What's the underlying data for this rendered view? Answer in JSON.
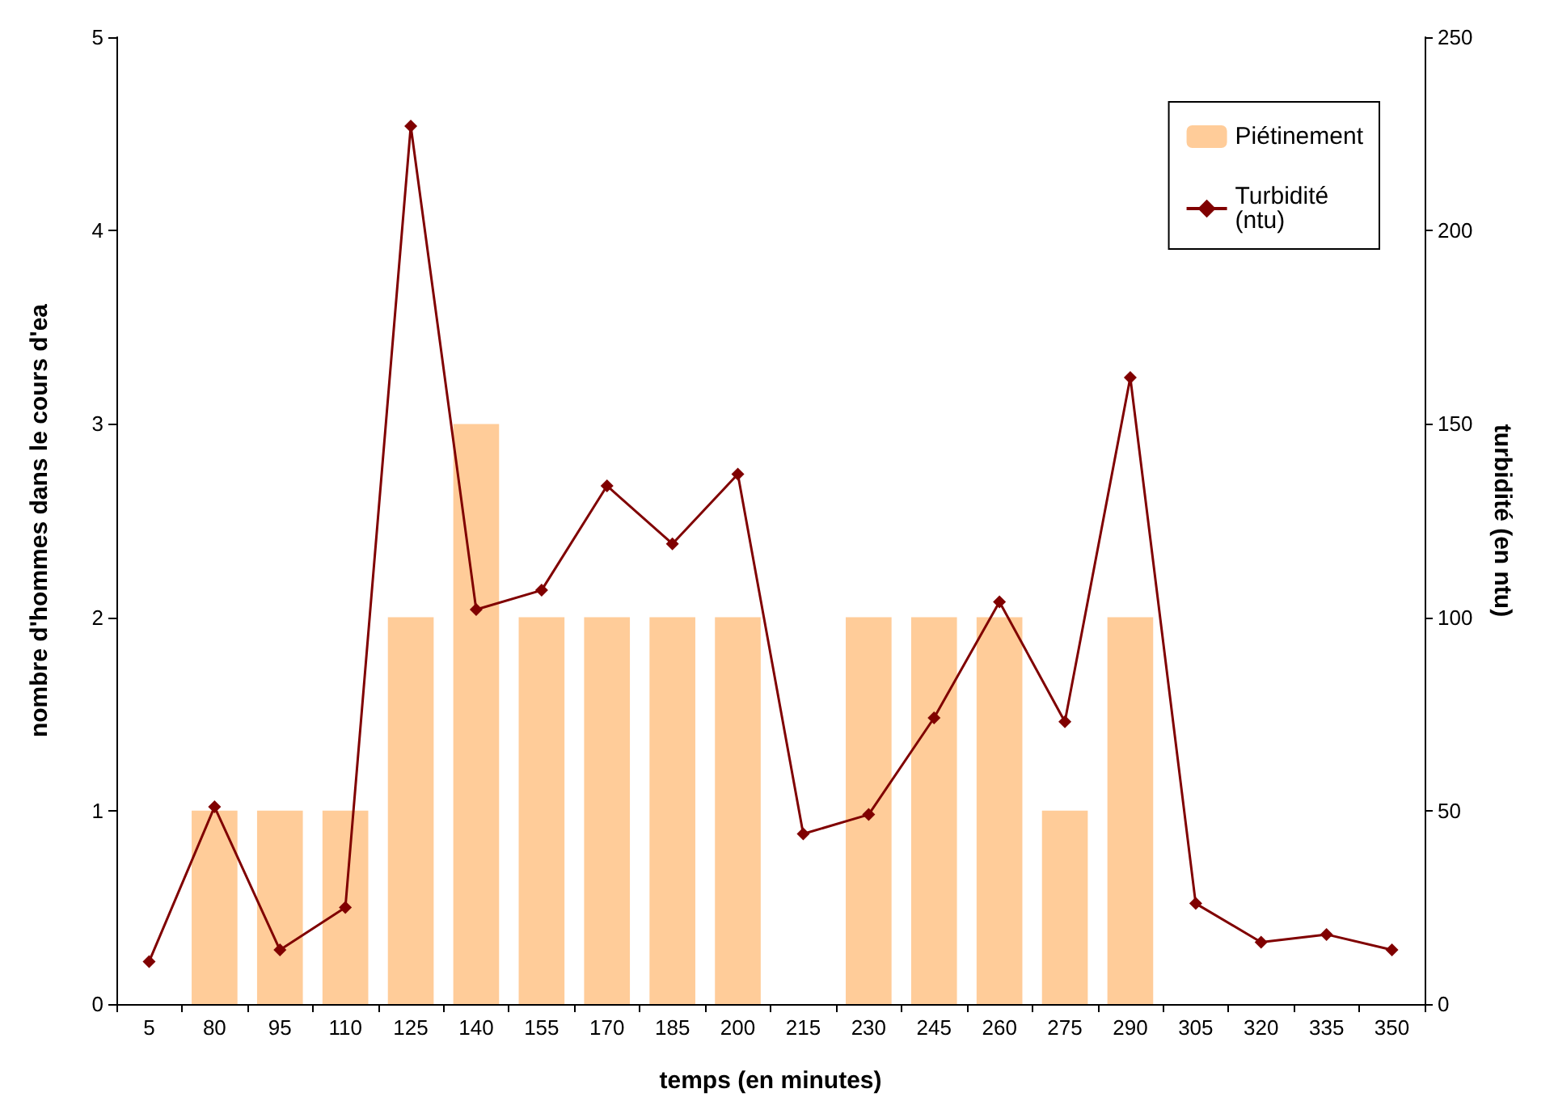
{
  "chart_data": {
    "type": "bar",
    "xlabel": "temps (en minutes)",
    "ylabel": "nombre d'hommes dans le cours d'ea",
    "y2label": "turbidité (en ntu)",
    "categories": [
      "5",
      "80",
      "95",
      "110",
      "125",
      "140",
      "155",
      "170",
      "185",
      "200",
      "215",
      "230",
      "245",
      "260",
      "275",
      "290",
      "305",
      "320",
      "335",
      "350"
    ],
    "series": [
      {
        "name": "Piétinement",
        "color": "#ffcc99",
        "values": [
          0,
          1,
          1,
          1,
          2,
          3,
          2,
          2,
          2,
          2,
          0,
          2,
          2,
          2,
          1,
          2,
          0,
          0,
          0,
          0
        ]
      },
      {
        "name": "Turbidité\n(ntu)",
        "type": "line",
        "axis": "y2",
        "color": "#800000",
        "marker": "diamond",
        "values": [
          11,
          51,
          14,
          25,
          227,
          102,
          107,
          134,
          119,
          137,
          44,
          49,
          74,
          104,
          73,
          162,
          26,
          16,
          18,
          14
        ]
      }
    ],
    "ylim": [
      0,
      5
    ],
    "yticks": [
      0,
      1,
      2,
      3,
      4,
      5
    ],
    "y2lim": [
      0,
      250
    ],
    "y2ticks": [
      0,
      50,
      100,
      150,
      200,
      250
    ],
    "grid": false,
    "legend": "top right"
  }
}
